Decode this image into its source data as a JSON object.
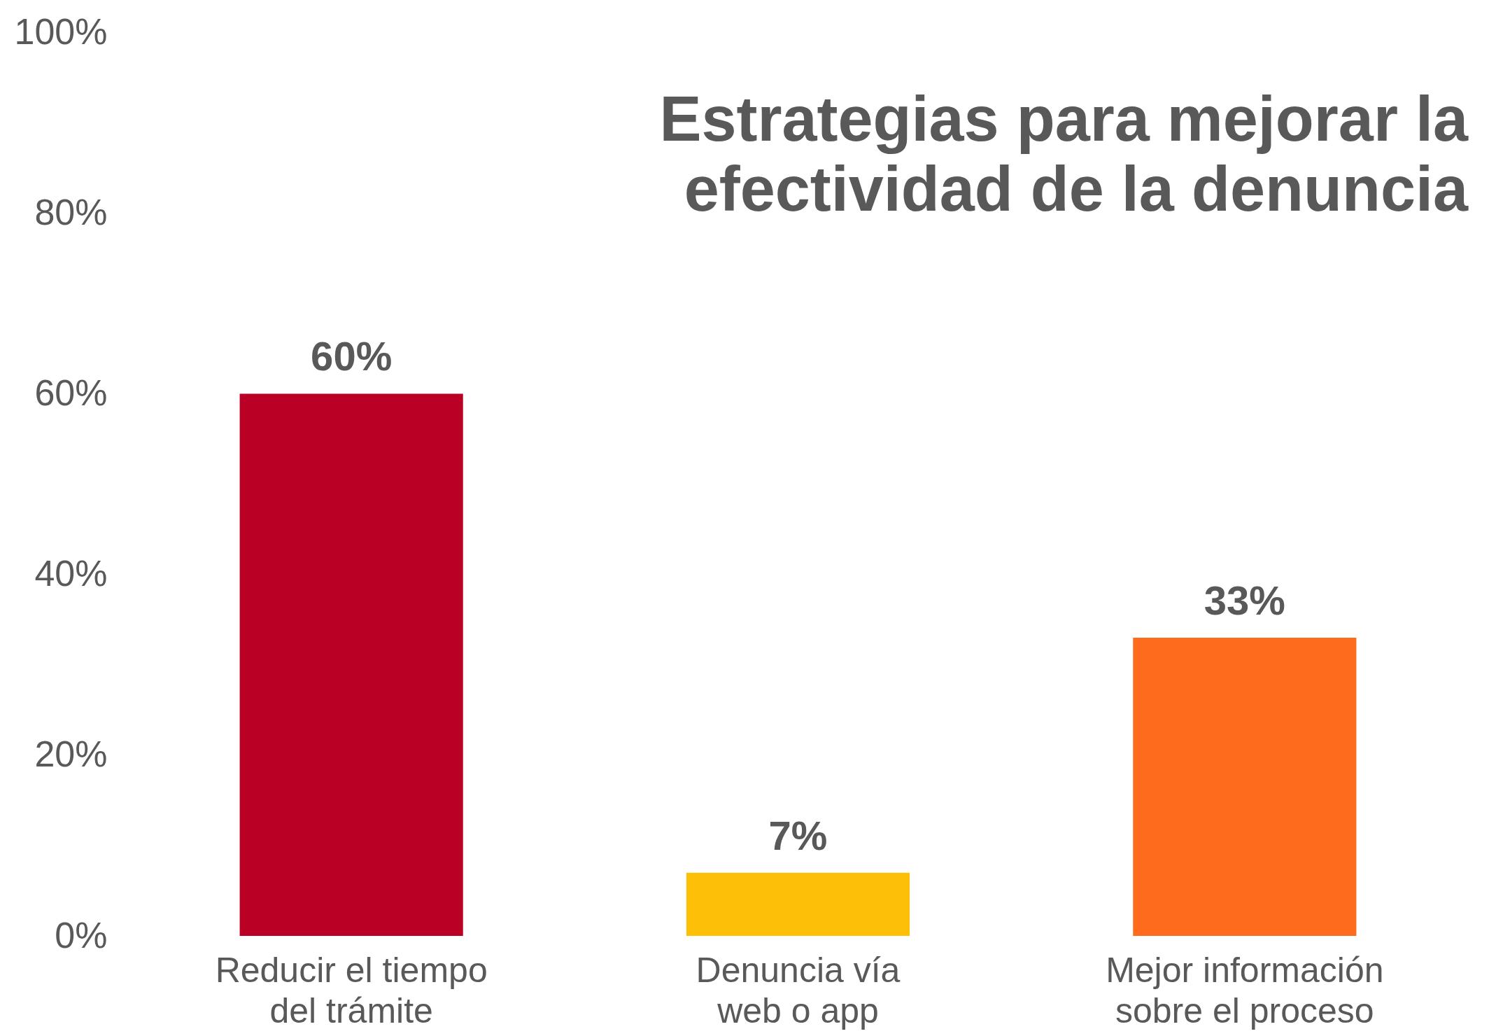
{
  "chart_data": {
    "type": "bar",
    "title": "Estrategias para mejorar la efectividad de la denuncia",
    "categories": [
      "Reducir el tiempo del trámite",
      "Denuncia vía web o app",
      "Mejor información sobre el proceso"
    ],
    "values": [
      60,
      7,
      33
    ],
    "colors": [
      "#ba0025",
      "#fdbf08",
      "#fe6b1d"
    ],
    "ylim": [
      0,
      100
    ],
    "yticks": [
      {
        "value": 0,
        "label": "0%"
      },
      {
        "value": 20,
        "label": "20%"
      },
      {
        "value": 40,
        "label": "40%"
      },
      {
        "value": 60,
        "label": "60%"
      },
      {
        "value": 80,
        "label": "80%"
      },
      {
        "value": 100,
        "label": "100%"
      }
    ],
    "value_labels": [
      "60%",
      "7%",
      "33%"
    ],
    "grid": false
  }
}
